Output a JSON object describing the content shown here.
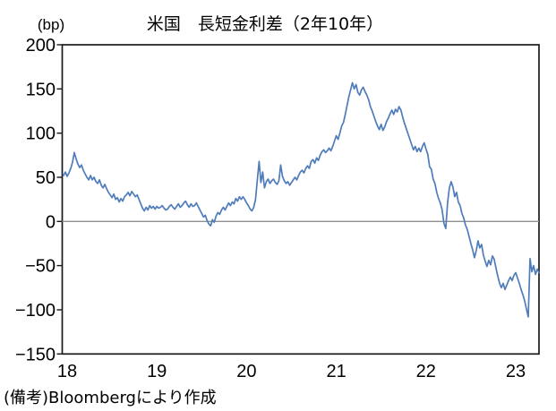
{
  "header": {
    "unit_label": "(bp)",
    "title": "米国　長短金利差（2年10年）"
  },
  "footnote": "(備考)Bloombergにより作成",
  "style": {
    "background": "#ffffff",
    "line_color": "#4f7cba",
    "axis_color": "#1a1a1a",
    "zero_line_color": "#909090",
    "text_color": "#000000"
  },
  "chart_data": {
    "type": "line",
    "title": "米国　長短金利差（2年10年）",
    "unit": "bp",
    "legend": "none",
    "grid": "off",
    "zero_line": true,
    "x_axis": {
      "ticks": [
        "18",
        "19",
        "20",
        "21",
        "22",
        "23"
      ],
      "tick_years": [
        2018,
        2019,
        2020,
        2021,
        2022,
        2023
      ],
      "range": [
        2018.0,
        2023.31
      ]
    },
    "y_axis": {
      "ticks": [
        "200",
        "150",
        "100",
        "50",
        "0",
        "−50",
        "−100",
        "−150"
      ],
      "tick_values": [
        200,
        150,
        100,
        50,
        0,
        -50,
        -100,
        -150
      ],
      "range": [
        -150,
        200
      ]
    },
    "series": [
      {
        "name": "米国長短金利差（2年10年）",
        "color": "#4f7cba",
        "points": [
          [
            2018.0,
            52
          ],
          [
            2018.02,
            56
          ],
          [
            2018.04,
            51
          ],
          [
            2018.06,
            55
          ],
          [
            2018.08,
            60
          ],
          [
            2018.1,
            67
          ],
          [
            2018.12,
            78
          ],
          [
            2018.14,
            71
          ],
          [
            2018.16,
            65
          ],
          [
            2018.18,
            61
          ],
          [
            2018.2,
            64
          ],
          [
            2018.22,
            58
          ],
          [
            2018.24,
            54
          ],
          [
            2018.26,
            50
          ],
          [
            2018.28,
            47
          ],
          [
            2018.3,
            52
          ],
          [
            2018.32,
            47
          ],
          [
            2018.34,
            50
          ],
          [
            2018.36,
            45
          ],
          [
            2018.38,
            43
          ],
          [
            2018.4,
            47
          ],
          [
            2018.42,
            41
          ],
          [
            2018.44,
            38
          ],
          [
            2018.46,
            42
          ],
          [
            2018.48,
            37
          ],
          [
            2018.5,
            33
          ],
          [
            2018.52,
            30
          ],
          [
            2018.54,
            27
          ],
          [
            2018.56,
            31
          ],
          [
            2018.58,
            25
          ],
          [
            2018.6,
            27
          ],
          [
            2018.62,
            22
          ],
          [
            2018.64,
            26
          ],
          [
            2018.66,
            23
          ],
          [
            2018.68,
            28
          ],
          [
            2018.7,
            30
          ],
          [
            2018.72,
            33
          ],
          [
            2018.74,
            29
          ],
          [
            2018.76,
            34
          ],
          [
            2018.78,
            31
          ],
          [
            2018.8,
            28
          ],
          [
            2018.82,
            30
          ],
          [
            2018.84,
            25
          ],
          [
            2018.86,
            20
          ],
          [
            2018.88,
            15
          ],
          [
            2018.9,
            12
          ],
          [
            2018.92,
            16
          ],
          [
            2018.94,
            13
          ],
          [
            2018.96,
            18
          ],
          [
            2018.98,
            15
          ],
          [
            2019.0,
            17
          ],
          [
            2019.02,
            14
          ],
          [
            2019.04,
            17
          ],
          [
            2019.06,
            15
          ],
          [
            2019.08,
            16
          ],
          [
            2019.1,
            18
          ],
          [
            2019.12,
            15
          ],
          [
            2019.14,
            13
          ],
          [
            2019.16,
            14
          ],
          [
            2019.18,
            17
          ],
          [
            2019.2,
            19
          ],
          [
            2019.22,
            16
          ],
          [
            2019.24,
            14
          ],
          [
            2019.26,
            17
          ],
          [
            2019.28,
            20
          ],
          [
            2019.3,
            16
          ],
          [
            2019.32,
            18
          ],
          [
            2019.34,
            21
          ],
          [
            2019.36,
            23
          ],
          [
            2019.38,
            19
          ],
          [
            2019.4,
            16
          ],
          [
            2019.42,
            20
          ],
          [
            2019.44,
            17
          ],
          [
            2019.46,
            18
          ],
          [
            2019.48,
            21
          ],
          [
            2019.5,
            17
          ],
          [
            2019.52,
            13
          ],
          [
            2019.54,
            9
          ],
          [
            2019.56,
            5
          ],
          [
            2019.58,
            7
          ],
          [
            2019.6,
            1
          ],
          [
            2019.62,
            -3
          ],
          [
            2019.64,
            -5
          ],
          [
            2019.66,
            2
          ],
          [
            2019.68,
            -1
          ],
          [
            2019.7,
            6
          ],
          [
            2019.72,
            10
          ],
          [
            2019.74,
            8
          ],
          [
            2019.76,
            13
          ],
          [
            2019.78,
            16
          ],
          [
            2019.8,
            13
          ],
          [
            2019.82,
            17
          ],
          [
            2019.84,
            21
          ],
          [
            2019.86,
            18
          ],
          [
            2019.88,
            22
          ],
          [
            2019.9,
            20
          ],
          [
            2019.92,
            26
          ],
          [
            2019.94,
            23
          ],
          [
            2019.96,
            28
          ],
          [
            2019.98,
            25
          ],
          [
            2020.0,
            28
          ],
          [
            2020.02,
            25
          ],
          [
            2020.04,
            21
          ],
          [
            2020.06,
            18
          ],
          [
            2020.08,
            14
          ],
          [
            2020.1,
            12
          ],
          [
            2020.12,
            16
          ],
          [
            2020.14,
            25
          ],
          [
            2020.16,
            47
          ],
          [
            2020.18,
            68
          ],
          [
            2020.2,
            44
          ],
          [
            2020.22,
            56
          ],
          [
            2020.24,
            38
          ],
          [
            2020.26,
            45
          ],
          [
            2020.28,
            48
          ],
          [
            2020.3,
            43
          ],
          [
            2020.32,
            46
          ],
          [
            2020.34,
            48
          ],
          [
            2020.36,
            44
          ],
          [
            2020.38,
            42
          ],
          [
            2020.4,
            46
          ],
          [
            2020.42,
            64
          ],
          [
            2020.44,
            51
          ],
          [
            2020.46,
            46
          ],
          [
            2020.48,
            43
          ],
          [
            2020.5,
            45
          ],
          [
            2020.52,
            41
          ],
          [
            2020.54,
            44
          ],
          [
            2020.56,
            47
          ],
          [
            2020.58,
            50
          ],
          [
            2020.6,
            47
          ],
          [
            2020.62,
            52
          ],
          [
            2020.64,
            56
          ],
          [
            2020.66,
            58
          ],
          [
            2020.68,
            55
          ],
          [
            2020.7,
            60
          ],
          [
            2020.72,
            63
          ],
          [
            2020.74,
            60
          ],
          [
            2020.76,
            68
          ],
          [
            2020.78,
            70
          ],
          [
            2020.8,
            66
          ],
          [
            2020.82,
            72
          ],
          [
            2020.84,
            69
          ],
          [
            2020.86,
            75
          ],
          [
            2020.88,
            79
          ],
          [
            2020.9,
            81
          ],
          [
            2020.92,
            78
          ],
          [
            2020.94,
            80
          ],
          [
            2020.96,
            83
          ],
          [
            2020.98,
            80
          ],
          [
            2021.0,
            85
          ],
          [
            2021.02,
            91
          ],
          [
            2021.04,
            97
          ],
          [
            2021.06,
            93
          ],
          [
            2021.08,
            100
          ],
          [
            2021.1,
            108
          ],
          [
            2021.12,
            112
          ],
          [
            2021.14,
            121
          ],
          [
            2021.16,
            131
          ],
          [
            2021.18,
            141
          ],
          [
            2021.2,
            149
          ],
          [
            2021.22,
            157
          ],
          [
            2021.24,
            150
          ],
          [
            2021.26,
            155
          ],
          [
            2021.28,
            146
          ],
          [
            2021.3,
            143
          ],
          [
            2021.32,
            149
          ],
          [
            2021.34,
            152
          ],
          [
            2021.36,
            147
          ],
          [
            2021.38,
            143
          ],
          [
            2021.4,
            138
          ],
          [
            2021.42,
            130
          ],
          [
            2021.44,
            125
          ],
          [
            2021.46,
            119
          ],
          [
            2021.48,
            113
          ],
          [
            2021.5,
            108
          ],
          [
            2021.52,
            104
          ],
          [
            2021.54,
            110
          ],
          [
            2021.56,
            103
          ],
          [
            2021.58,
            107
          ],
          [
            2021.6,
            113
          ],
          [
            2021.62,
            117
          ],
          [
            2021.64,
            122
          ],
          [
            2021.66,
            126
          ],
          [
            2021.68,
            121
          ],
          [
            2021.7,
            127
          ],
          [
            2021.72,
            124
          ],
          [
            2021.74,
            130
          ],
          [
            2021.76,
            126
          ],
          [
            2021.78,
            118
          ],
          [
            2021.8,
            111
          ],
          [
            2021.82,
            105
          ],
          [
            2021.84,
            99
          ],
          [
            2021.86,
            93
          ],
          [
            2021.88,
            87
          ],
          [
            2021.9,
            81
          ],
          [
            2021.92,
            85
          ],
          [
            2021.94,
            79
          ],
          [
            2021.96,
            83
          ],
          [
            2021.98,
            79
          ],
          [
            2022.0,
            85
          ],
          [
            2022.02,
            89
          ],
          [
            2022.04,
            82
          ],
          [
            2022.06,
            76
          ],
          [
            2022.08,
            62
          ],
          [
            2022.1,
            59
          ],
          [
            2022.12,
            48
          ],
          [
            2022.14,
            43
          ],
          [
            2022.16,
            33
          ],
          [
            2022.18,
            26
          ],
          [
            2022.2,
            21
          ],
          [
            2022.22,
            13
          ],
          [
            2022.24,
            -2
          ],
          [
            2022.26,
            -8
          ],
          [
            2022.28,
            21
          ],
          [
            2022.3,
            38
          ],
          [
            2022.32,
            45
          ],
          [
            2022.34,
            39
          ],
          [
            2022.36,
            28
          ],
          [
            2022.38,
            33
          ],
          [
            2022.4,
            22
          ],
          [
            2022.42,
            18
          ],
          [
            2022.44,
            9
          ],
          [
            2022.46,
            4
          ],
          [
            2022.48,
            -4
          ],
          [
            2022.5,
            -9
          ],
          [
            2022.52,
            -17
          ],
          [
            2022.54,
            -25
          ],
          [
            2022.56,
            -32
          ],
          [
            2022.58,
            -41
          ],
          [
            2022.6,
            -33
          ],
          [
            2022.62,
            -22
          ],
          [
            2022.64,
            -30
          ],
          [
            2022.66,
            -26
          ],
          [
            2022.68,
            -38
          ],
          [
            2022.7,
            -45
          ],
          [
            2022.72,
            -51
          ],
          [
            2022.74,
            -44
          ],
          [
            2022.76,
            -49
          ],
          [
            2022.78,
            -39
          ],
          [
            2022.8,
            -43
          ],
          [
            2022.82,
            -53
          ],
          [
            2022.84,
            -62
          ],
          [
            2022.86,
            -70
          ],
          [
            2022.88,
            -75
          ],
          [
            2022.9,
            -70
          ],
          [
            2022.92,
            -77
          ],
          [
            2022.94,
            -72
          ],
          [
            2022.96,
            -67
          ],
          [
            2022.98,
            -63
          ],
          [
            2023.0,
            -67
          ],
          [
            2023.02,
            -61
          ],
          [
            2023.04,
            -58
          ],
          [
            2023.06,
            -64
          ],
          [
            2023.08,
            -70
          ],
          [
            2023.1,
            -77
          ],
          [
            2023.12,
            -83
          ],
          [
            2023.14,
            -90
          ],
          [
            2023.16,
            -99
          ],
          [
            2023.18,
            -108
          ],
          [
            2023.2,
            -42
          ],
          [
            2023.22,
            -57
          ],
          [
            2023.24,
            -50
          ],
          [
            2023.26,
            -60
          ],
          [
            2023.28,
            -54
          ],
          [
            2023.3,
            -58
          ]
        ]
      }
    ]
  }
}
